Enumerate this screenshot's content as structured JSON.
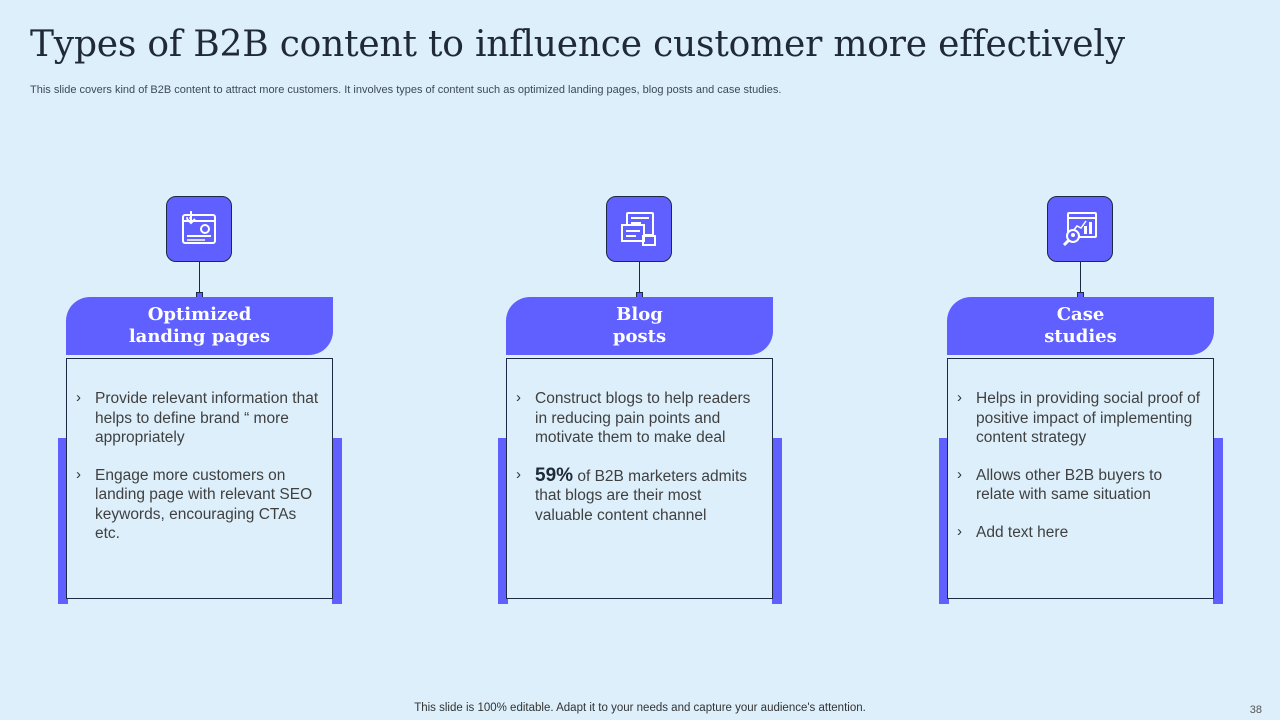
{
  "title": "Types of B2B content to influence customer more effectively",
  "subtitle": "This slide covers kind of B2B content to attract more customers. It involves types of content such as optimized landing pages, blog posts and case studies.",
  "footer": "This slide is 100% editable. Adapt it to your needs and capture your audience's attention.",
  "page_number": "38",
  "colors": {
    "accent": "#5f60ff",
    "background": "#ddeffb",
    "outline": "#1e2a44"
  },
  "cards": [
    {
      "icon": "landing-page-settings-icon",
      "heading": "Optimized\nlanding pages",
      "bullets": [
        "Provide relevant information that helps to define brand “ more appropriately",
        "Engage more customers on landing page with relevant SEO keywords, encouraging CTAs etc."
      ]
    },
    {
      "icon": "blog-document-icon",
      "heading": "Blog\nposts",
      "bullets": [
        "Construct blogs to help readers in reducing pain points and motivate them to make deal"
      ],
      "stat": {
        "value": "59%",
        "text": " of B2B marketers admits that blogs are their most valuable content channel"
      }
    },
    {
      "icon": "case-study-analytics-icon",
      "heading": "Case\nstudies",
      "bullets": [
        "Helps in providing social proof of positive impact of implementing content strategy",
        "Allows other B2B buyers to relate with same situation",
        "Add text here"
      ]
    }
  ]
}
